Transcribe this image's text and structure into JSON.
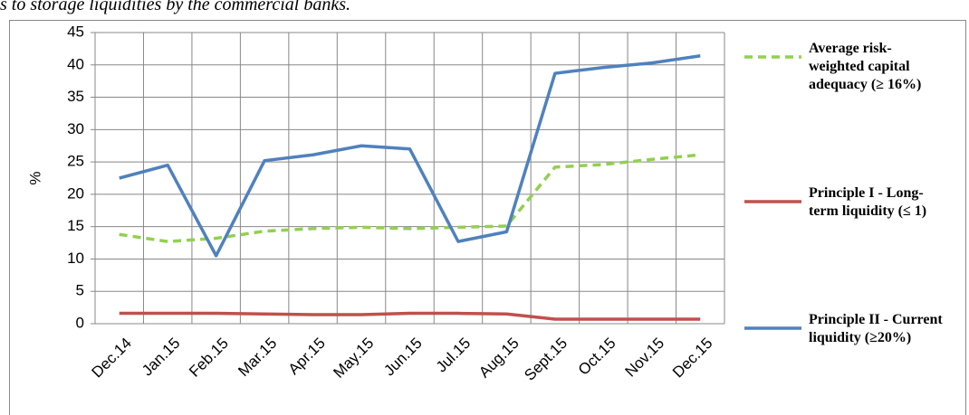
{
  "caption": "s to storage liquidities by the commercial banks.",
  "chart_data": {
    "type": "line",
    "ylabel": "%",
    "categories": [
      "Dec.14",
      "Jan.15",
      "Feb.15",
      "Mar.15",
      "Apr.15",
      "May.15",
      "Jun.15",
      "Jul.15",
      "Aug.15",
      "Sept.15",
      "Oct.15",
      "Nov.15",
      "Dec.15"
    ],
    "series": [
      {
        "name": "Average risk-weighted capital adequacy  (≥ 16%)",
        "color": "#92d050",
        "dash": true,
        "values": [
          13.8,
          12.7,
          13.2,
          14.3,
          14.7,
          14.9,
          14.7,
          14.9,
          15.1,
          24.2,
          24.6,
          25.4,
          26.1
        ]
      },
      {
        "name": "Principle I - Long-term liquidity (≤ 1)",
        "color": "#c0504d",
        "dash": false,
        "values": [
          1.6,
          1.6,
          1.6,
          1.5,
          1.4,
          1.4,
          1.6,
          1.6,
          1.5,
          0.7,
          0.7,
          0.7,
          0.7
        ]
      },
      {
        "name": "Principle II - Current liquidity (≥20%)",
        "color": "#4f81bd",
        "dash": false,
        "values": [
          22.5,
          24.5,
          10.5,
          25.2,
          26.1,
          27.5,
          27.0,
          12.7,
          14.2,
          38.7,
          39.6,
          40.3,
          41.4
        ]
      }
    ],
    "ylim": [
      0,
      45
    ],
    "yticks": [
      0,
      5,
      10,
      15,
      20,
      25,
      30,
      35,
      40,
      45
    ],
    "grid": true,
    "legend": "right"
  }
}
